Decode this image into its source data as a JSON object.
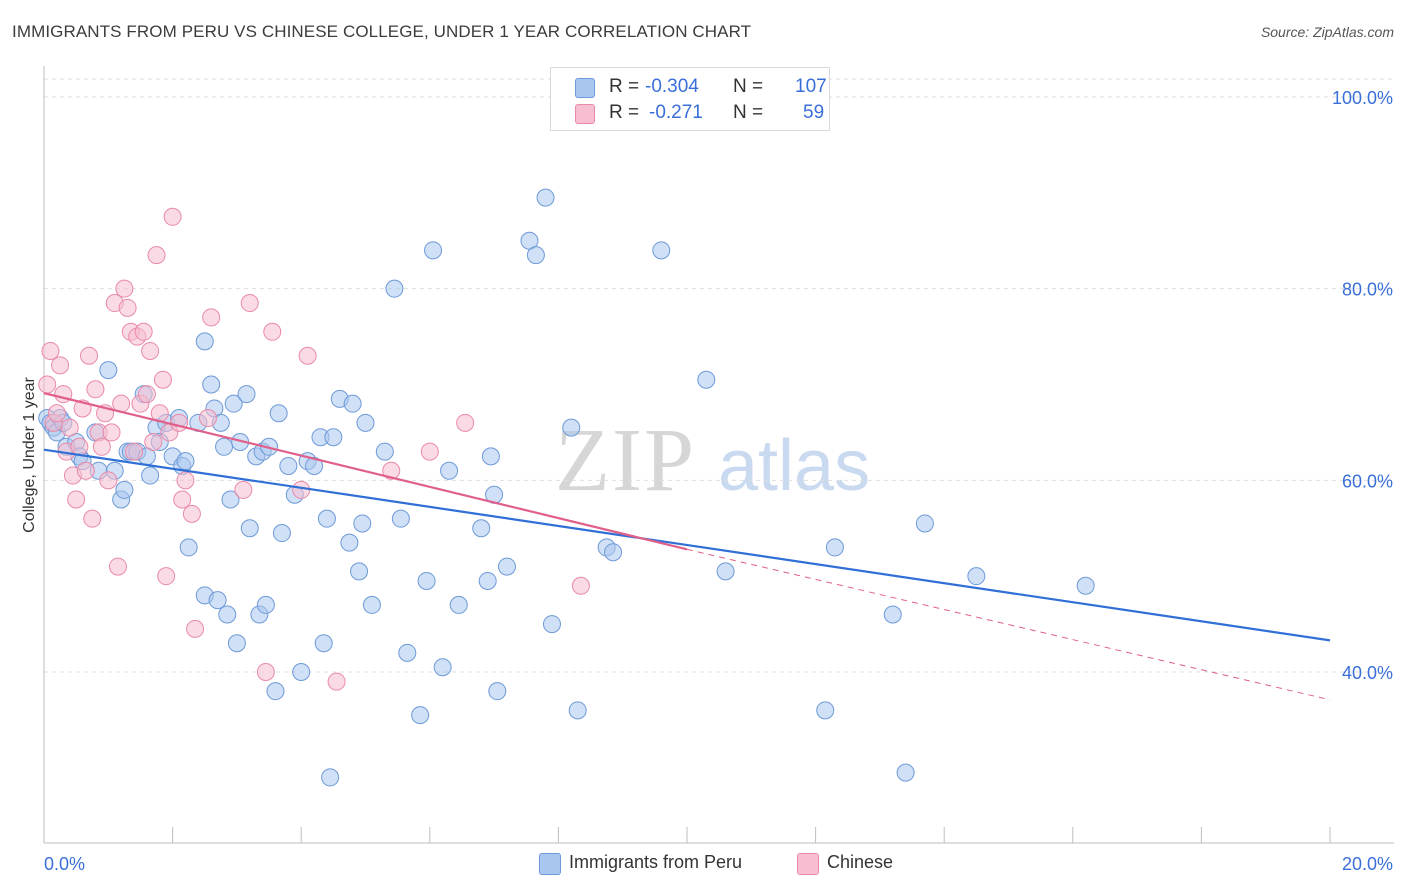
{
  "title": "IMMIGRANTS FROM PERU VS CHINESE COLLEGE, UNDER 1 YEAR CORRELATION CHART",
  "source": "Source: ZipAtlas.com",
  "watermark": {
    "zip": "ZIP",
    "atlas": "atlas"
  },
  "colors": {
    "blue_fill": "#a9c6ee",
    "blue_stroke": "#6d9ad8",
    "blue_line": "#2f6fd6",
    "pink_fill": "#f6bed0",
    "pink_stroke": "#e98aa9",
    "pink_line": "#e0608a",
    "axis_text": "#3a6fd8",
    "grid": "#dedede"
  },
  "legend": {
    "r_label": "R =",
    "n_label": "N =",
    "rows": [
      {
        "series": "Immigrants from Peru",
        "r": "-0.304",
        "n": "107"
      },
      {
        "series": "Chinese",
        "r": "-0.271",
        "n": "59"
      }
    ]
  },
  "bottom_legend": [
    "Immigrants from Peru",
    "Chinese"
  ],
  "chart_data": {
    "type": "scatter",
    "title": "IMMIGRANTS FROM PERU VS CHINESE COLLEGE, UNDER 1 YEAR CORRELATION CHART",
    "xlabel": "",
    "ylabel": "College, Under 1 year",
    "xlim": [
      0,
      20
    ],
    "ylim": [
      20,
      100
    ],
    "x_tick_labels": [
      "0.0%",
      "20.0%"
    ],
    "y_tick_labels": [
      "100.0%",
      "80.0%",
      "60.0%",
      "40.0%"
    ],
    "y_ticks": [
      100,
      80,
      60,
      40
    ],
    "grid": true,
    "series": [
      {
        "name": "Immigrants from Peru",
        "color": "#a9c6ee",
        "points": [
          [
            0.05,
            66.5
          ],
          [
            0.1,
            66
          ],
          [
            0.15,
            65.5
          ],
          [
            0.2,
            65
          ],
          [
            0.25,
            66.5
          ],
          [
            0.3,
            66
          ],
          [
            0.35,
            63.5
          ],
          [
            0.5,
            64
          ],
          [
            0.55,
            62.5
          ],
          [
            0.6,
            62
          ],
          [
            0.8,
            65
          ],
          [
            0.85,
            61
          ],
          [
            1.0,
            71.5
          ],
          [
            1.1,
            61
          ],
          [
            1.2,
            58
          ],
          [
            1.25,
            59
          ],
          [
            1.3,
            63
          ],
          [
            1.35,
            63
          ],
          [
            1.45,
            63
          ],
          [
            1.55,
            69
          ],
          [
            1.6,
            62.5
          ],
          [
            1.65,
            60.5
          ],
          [
            1.75,
            65.5
          ],
          [
            1.8,
            64
          ],
          [
            1.9,
            66
          ],
          [
            2.0,
            62.5
          ],
          [
            2.1,
            66.5
          ],
          [
            2.15,
            61.5
          ],
          [
            2.2,
            62
          ],
          [
            2.25,
            53
          ],
          [
            2.4,
            66
          ],
          [
            2.5,
            48
          ],
          [
            2.5,
            74.5
          ],
          [
            2.6,
            70
          ],
          [
            2.65,
            67.5
          ],
          [
            2.7,
            47.5
          ],
          [
            2.75,
            66
          ],
          [
            2.8,
            63.5
          ],
          [
            2.85,
            46
          ],
          [
            2.9,
            58
          ],
          [
            2.95,
            68
          ],
          [
            3.0,
            43
          ],
          [
            3.05,
            64
          ],
          [
            3.15,
            69
          ],
          [
            3.2,
            55
          ],
          [
            3.3,
            62.5
          ],
          [
            3.35,
            46
          ],
          [
            3.4,
            63
          ],
          [
            3.45,
            47
          ],
          [
            3.5,
            63.5
          ],
          [
            3.6,
            38
          ],
          [
            3.65,
            67
          ],
          [
            3.7,
            54.5
          ],
          [
            3.8,
            61.5
          ],
          [
            3.9,
            58.5
          ],
          [
            4.0,
            40
          ],
          [
            4.1,
            62
          ],
          [
            4.2,
            61.5
          ],
          [
            4.3,
            64.5
          ],
          [
            4.35,
            43
          ],
          [
            4.4,
            56
          ],
          [
            4.45,
            29
          ],
          [
            4.5,
            64.5
          ],
          [
            4.6,
            68.5
          ],
          [
            4.75,
            53.5
          ],
          [
            4.8,
            68
          ],
          [
            4.9,
            50.5
          ],
          [
            4.95,
            55.5
          ],
          [
            5.0,
            66
          ],
          [
            5.1,
            47
          ],
          [
            5.3,
            63
          ],
          [
            5.45,
            80
          ],
          [
            5.55,
            56
          ],
          [
            5.65,
            42
          ],
          [
            5.85,
            35.5
          ],
          [
            5.95,
            49.5
          ],
          [
            6.05,
            84
          ],
          [
            6.2,
            40.5
          ],
          [
            6.3,
            61
          ],
          [
            6.45,
            47
          ],
          [
            6.8,
            55
          ],
          [
            6.9,
            49.5
          ],
          [
            6.95,
            62.5
          ],
          [
            7.0,
            58.5
          ],
          [
            7.05,
            38
          ],
          [
            7.2,
            51
          ],
          [
            7.55,
            85
          ],
          [
            7.65,
            83.5
          ],
          [
            7.8,
            89.5
          ],
          [
            7.9,
            45
          ],
          [
            8.2,
            65.5
          ],
          [
            8.3,
            36
          ],
          [
            8.75,
            53
          ],
          [
            8.85,
            52.5
          ],
          [
            9.6,
            84
          ],
          [
            10.3,
            70.5
          ],
          [
            10.6,
            50.5
          ],
          [
            12.15,
            36
          ],
          [
            12.3,
            53
          ],
          [
            13.2,
            46
          ],
          [
            13.4,
            29.5
          ],
          [
            13.7,
            55.5
          ],
          [
            14.5,
            50
          ],
          [
            16.2,
            49
          ]
        ]
      },
      {
        "name": "Chinese",
        "color": "#f6bed0",
        "points": [
          [
            0.05,
            70
          ],
          [
            0.1,
            73.5
          ],
          [
            0.15,
            66
          ],
          [
            0.2,
            67
          ],
          [
            0.25,
            72
          ],
          [
            0.3,
            69
          ],
          [
            0.35,
            63
          ],
          [
            0.4,
            65.5
          ],
          [
            0.45,
            60.5
          ],
          [
            0.5,
            58
          ],
          [
            0.55,
            63.5
          ],
          [
            0.6,
            67.5
          ],
          [
            0.65,
            61
          ],
          [
            0.7,
            73
          ],
          [
            0.75,
            56
          ],
          [
            0.8,
            69.5
          ],
          [
            0.85,
            65
          ],
          [
            0.9,
            63.5
          ],
          [
            0.95,
            67
          ],
          [
            1.0,
            60
          ],
          [
            1.05,
            65
          ],
          [
            1.1,
            78.5
          ],
          [
            1.15,
            51
          ],
          [
            1.2,
            68
          ],
          [
            1.25,
            80
          ],
          [
            1.3,
            78
          ],
          [
            1.35,
            75.5
          ],
          [
            1.4,
            63
          ],
          [
            1.45,
            75
          ],
          [
            1.5,
            68
          ],
          [
            1.55,
            75.5
          ],
          [
            1.6,
            69
          ],
          [
            1.65,
            73.5
          ],
          [
            1.7,
            64
          ],
          [
            1.75,
            83.5
          ],
          [
            1.8,
            67
          ],
          [
            1.85,
            70.5
          ],
          [
            1.9,
            50
          ],
          [
            1.95,
            65
          ],
          [
            2.0,
            87.5
          ],
          [
            2.1,
            66
          ],
          [
            2.15,
            58
          ],
          [
            2.2,
            60
          ],
          [
            2.3,
            56.5
          ],
          [
            2.35,
            44.5
          ],
          [
            2.55,
            66.5
          ],
          [
            2.6,
            77
          ],
          [
            3.1,
            59
          ],
          [
            3.2,
            78.5
          ],
          [
            3.45,
            40
          ],
          [
            3.55,
            75.5
          ],
          [
            4.0,
            59
          ],
          [
            4.1,
            73
          ],
          [
            4.55,
            39
          ],
          [
            5.4,
            61
          ],
          [
            6.0,
            63
          ],
          [
            6.55,
            66
          ],
          [
            8.35,
            49
          ]
        ]
      }
    ],
    "trend_lines": [
      {
        "series": "Immigrants from Peru",
        "x": [
          0,
          20
        ],
        "y": [
          63.2,
          43.3
        ]
      },
      {
        "series": "Chinese",
        "x": [
          0,
          10
        ],
        "y": [
          69.1,
          52.8
        ],
        "dashed_extension": {
          "x": [
            10,
            20
          ],
          "y": [
            52.8,
            37.1
          ]
        }
      }
    ]
  }
}
